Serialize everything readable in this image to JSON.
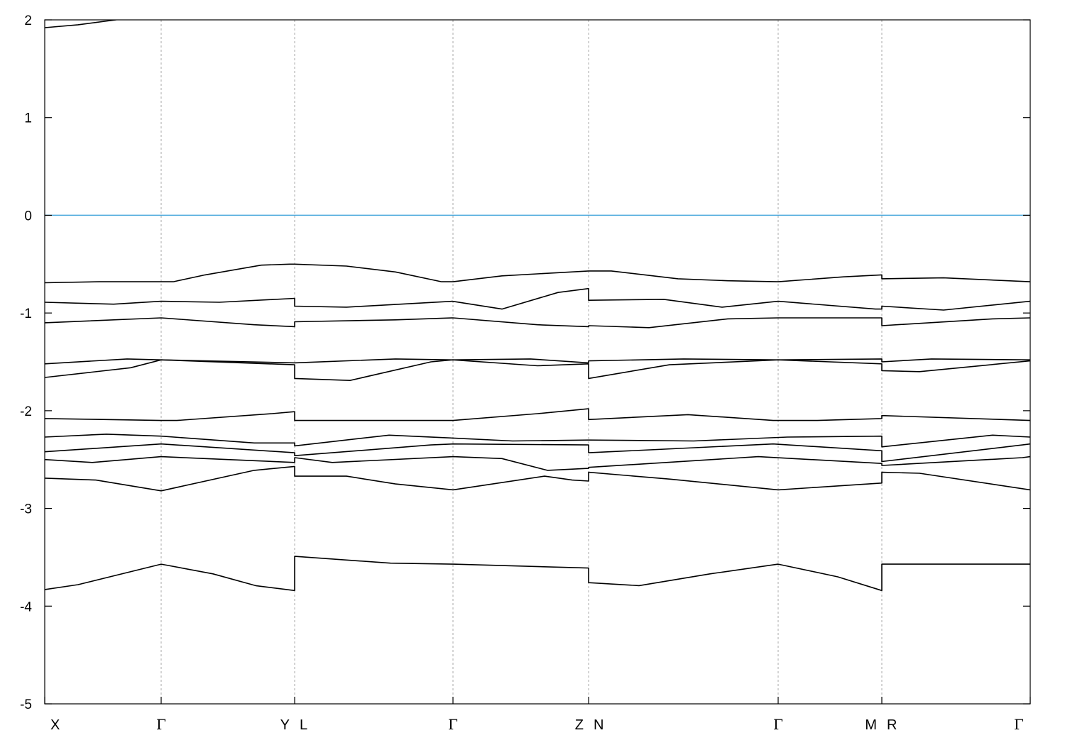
{
  "chart_data": {
    "type": "line",
    "title": "",
    "xlabel": "",
    "ylabel": "",
    "ylim": [
      -5,
      2
    ],
    "yticks": [
      2,
      1,
      0,
      -1,
      -2,
      -3,
      -4,
      -5
    ],
    "xlim": [
      0,
      13.88
    ],
    "grid": "vertical dashed lines at high-symmetry points",
    "legend": "none",
    "fermi_level": {
      "value": 0,
      "color": "#4aa8dc"
    },
    "band_color": "#000000",
    "kpoints": [
      {
        "k": 0,
        "labels": [
          "X"
        ]
      },
      {
        "k": 1.64,
        "labels": [
          "Γ"
        ]
      },
      {
        "k": 3.52,
        "labels": [
          "Y",
          "L"
        ]
      },
      {
        "k": 5.75,
        "labels": [
          "Γ"
        ]
      },
      {
        "k": 7.66,
        "labels": [
          "Z",
          "N"
        ]
      },
      {
        "k": 10.33,
        "labels": [
          "Γ"
        ]
      },
      {
        "k": 11.79,
        "labels": [
          "M",
          "R"
        ]
      },
      {
        "k": 13.88,
        "labels": [
          "Γ"
        ]
      }
    ],
    "series": [
      {
        "points": [
          [
            0,
            1.92
          ],
          [
            0.47,
            1.95
          ],
          [
            1.0,
            2.0
          ],
          [
            1.3,
            2.05
          ]
        ]
      },
      {
        "points": [
          [
            0,
            -0.69
          ],
          [
            0.77,
            -0.68
          ],
          [
            1.64,
            -0.68
          ],
          [
            1.81,
            -0.68
          ],
          [
            2.26,
            -0.61
          ],
          [
            3.05,
            -0.51
          ],
          [
            3.45,
            -0.5
          ],
          [
            3.52,
            -0.5
          ],
          [
            4.25,
            -0.52
          ],
          [
            4.94,
            -0.58
          ],
          [
            5.59,
            -0.68
          ],
          [
            5.75,
            -0.68
          ],
          [
            6.44,
            -0.62
          ],
          [
            7.66,
            -0.57
          ],
          [
            7.98,
            -0.57
          ],
          [
            8.92,
            -0.65
          ],
          [
            9.62,
            -0.67
          ],
          [
            10.33,
            -0.68
          ],
          [
            11.25,
            -0.63
          ],
          [
            11.79,
            -0.61
          ],
          [
            11.79,
            -0.65
          ],
          [
            12.66,
            -0.64
          ],
          [
            13.88,
            -0.68
          ]
        ]
      },
      {
        "points": [
          [
            0,
            -0.89
          ],
          [
            0.97,
            -0.91
          ],
          [
            1.64,
            -0.88
          ],
          [
            2.46,
            -0.89
          ],
          [
            3.52,
            -0.85
          ],
          [
            3.52,
            -0.93
          ],
          [
            4.25,
            -0.94
          ],
          [
            5.74,
            -0.88
          ],
          [
            6.44,
            -0.96
          ],
          [
            7.23,
            -0.79
          ],
          [
            7.66,
            -0.75
          ],
          [
            7.66,
            -0.87
          ],
          [
            8.72,
            -0.86
          ],
          [
            9.54,
            -0.94
          ],
          [
            10.33,
            -0.88
          ],
          [
            11.7,
            -0.96
          ],
          [
            11.79,
            -0.96
          ],
          [
            11.79,
            -0.93
          ],
          [
            12.66,
            -0.97
          ],
          [
            13.88,
            -0.88
          ]
        ]
      },
      {
        "points": [
          [
            0,
            -1.1
          ],
          [
            1.64,
            -1.05
          ],
          [
            2.95,
            -1.12
          ],
          [
            3.52,
            -1.14
          ],
          [
            3.52,
            -1.09
          ],
          [
            4.94,
            -1.07
          ],
          [
            5.75,
            -1.05
          ],
          [
            6.94,
            -1.12
          ],
          [
            7.66,
            -1.14
          ],
          [
            7.66,
            -1.13
          ],
          [
            8.51,
            -1.15
          ],
          [
            9.62,
            -1.06
          ],
          [
            10.33,
            -1.05
          ],
          [
            11.79,
            -1.05
          ],
          [
            11.79,
            -1.13
          ],
          [
            13.35,
            -1.06
          ],
          [
            13.88,
            -1.05
          ]
        ]
      },
      {
        "points": [
          [
            0,
            -1.52
          ],
          [
            1.16,
            -1.47
          ],
          [
            1.64,
            -1.48
          ],
          [
            3.52,
            -1.51
          ],
          [
            4.94,
            -1.47
          ],
          [
            5.75,
            -1.48
          ],
          [
            6.84,
            -1.47
          ],
          [
            7.66,
            -1.51
          ],
          [
            7.66,
            -1.49
          ],
          [
            9.0,
            -1.47
          ],
          [
            10.33,
            -1.48
          ],
          [
            11.79,
            -1.47
          ],
          [
            11.79,
            -1.5
          ],
          [
            12.49,
            -1.47
          ],
          [
            13.88,
            -1.48
          ]
        ]
      },
      {
        "points": [
          [
            0,
            -1.66
          ],
          [
            1.21,
            -1.56
          ],
          [
            1.64,
            -1.48
          ],
          [
            3.52,
            -1.53
          ],
          [
            3.52,
            -1.67
          ],
          [
            4.3,
            -1.69
          ],
          [
            5.44,
            -1.5
          ],
          [
            5.75,
            -1.48
          ],
          [
            6.94,
            -1.54
          ],
          [
            7.66,
            -1.52
          ],
          [
            7.66,
            -1.67
          ],
          [
            8.8,
            -1.53
          ],
          [
            10.33,
            -1.48
          ],
          [
            11.79,
            -1.52
          ],
          [
            11.79,
            -1.59
          ],
          [
            12.32,
            -1.6
          ],
          [
            13.88,
            -1.49
          ]
        ]
      },
      {
        "points": [
          [
            0,
            -2.08
          ],
          [
            1.64,
            -2.1
          ],
          [
            1.86,
            -2.1
          ],
          [
            3.2,
            -2.03
          ],
          [
            3.52,
            -2.01
          ],
          [
            3.52,
            -2.1
          ],
          [
            5.75,
            -2.1
          ],
          [
            6.94,
            -2.03
          ],
          [
            7.66,
            -1.98
          ],
          [
            7.66,
            -2.09
          ],
          [
            9.06,
            -2.04
          ],
          [
            10.26,
            -2.1
          ],
          [
            10.88,
            -2.1
          ],
          [
            11.79,
            -2.08
          ],
          [
            11.79,
            -2.05
          ],
          [
            13.88,
            -2.1
          ]
        ]
      },
      {
        "points": [
          [
            0,
            -2.27
          ],
          [
            0.87,
            -2.24
          ],
          [
            1.64,
            -2.26
          ],
          [
            2.95,
            -2.33
          ],
          [
            3.52,
            -2.33
          ],
          [
            3.52,
            -2.36
          ],
          [
            4.85,
            -2.25
          ],
          [
            5.75,
            -2.28
          ],
          [
            6.59,
            -2.31
          ],
          [
            7.66,
            -2.3
          ],
          [
            9.14,
            -2.31
          ],
          [
            10.46,
            -2.27
          ],
          [
            11.79,
            -2.26
          ],
          [
            11.79,
            -2.37
          ],
          [
            13.35,
            -2.25
          ],
          [
            13.88,
            -2.27
          ]
        ]
      },
      {
        "points": [
          [
            0,
            -2.42
          ],
          [
            1.64,
            -2.34
          ],
          [
            3.52,
            -2.43
          ],
          [
            3.52,
            -2.46
          ],
          [
            5.44,
            -2.35
          ],
          [
            5.75,
            -2.34
          ],
          [
            7.66,
            -2.35
          ],
          [
            7.66,
            -2.43
          ],
          [
            10.26,
            -2.34
          ],
          [
            11.79,
            -2.41
          ],
          [
            11.79,
            -2.52
          ],
          [
            13.77,
            -2.35
          ],
          [
            13.88,
            -2.34
          ]
        ]
      },
      {
        "points": [
          [
            0,
            -2.5
          ],
          [
            0.67,
            -2.53
          ],
          [
            1.64,
            -2.47
          ],
          [
            3.52,
            -2.53
          ],
          [
            3.52,
            -2.48
          ],
          [
            4.05,
            -2.53
          ],
          [
            5.75,
            -2.47
          ],
          [
            6.44,
            -2.49
          ],
          [
            7.08,
            -2.61
          ],
          [
            7.66,
            -2.59
          ],
          [
            7.66,
            -2.58
          ],
          [
            10.05,
            -2.47
          ],
          [
            11.79,
            -2.54
          ],
          [
            11.79,
            -2.56
          ],
          [
            13.77,
            -2.48
          ],
          [
            13.88,
            -2.47
          ]
        ]
      },
      {
        "points": [
          [
            0,
            -2.69
          ],
          [
            0.72,
            -2.71
          ],
          [
            1.64,
            -2.82
          ],
          [
            2.95,
            -2.61
          ],
          [
            3.52,
            -2.57
          ],
          [
            3.52,
            -2.67
          ],
          [
            4.25,
            -2.67
          ],
          [
            4.94,
            -2.75
          ],
          [
            5.75,
            -2.81
          ],
          [
            7.04,
            -2.67
          ],
          [
            7.43,
            -2.71
          ],
          [
            7.66,
            -2.72
          ],
          [
            7.66,
            -2.63
          ],
          [
            8.81,
            -2.7
          ],
          [
            10.33,
            -2.81
          ],
          [
            11.79,
            -2.74
          ],
          [
            11.79,
            -2.63
          ],
          [
            12.32,
            -2.64
          ],
          [
            13.88,
            -2.81
          ]
        ]
      },
      {
        "points": [
          [
            0,
            -3.83
          ],
          [
            0.47,
            -3.78
          ],
          [
            1.64,
            -3.57
          ],
          [
            2.37,
            -3.67
          ],
          [
            2.97,
            -3.79
          ],
          [
            3.52,
            -3.84
          ],
          [
            3.52,
            -3.49
          ],
          [
            4.87,
            -3.56
          ],
          [
            5.75,
            -3.57
          ],
          [
            7.66,
            -3.61
          ],
          [
            7.66,
            -3.76
          ],
          [
            8.37,
            -3.79
          ],
          [
            9.37,
            -3.67
          ],
          [
            10.33,
            -3.57
          ],
          [
            11.17,
            -3.7
          ],
          [
            11.79,
            -3.84
          ],
          [
            11.79,
            -3.57
          ],
          [
            13.88,
            -3.57
          ]
        ]
      }
    ]
  }
}
